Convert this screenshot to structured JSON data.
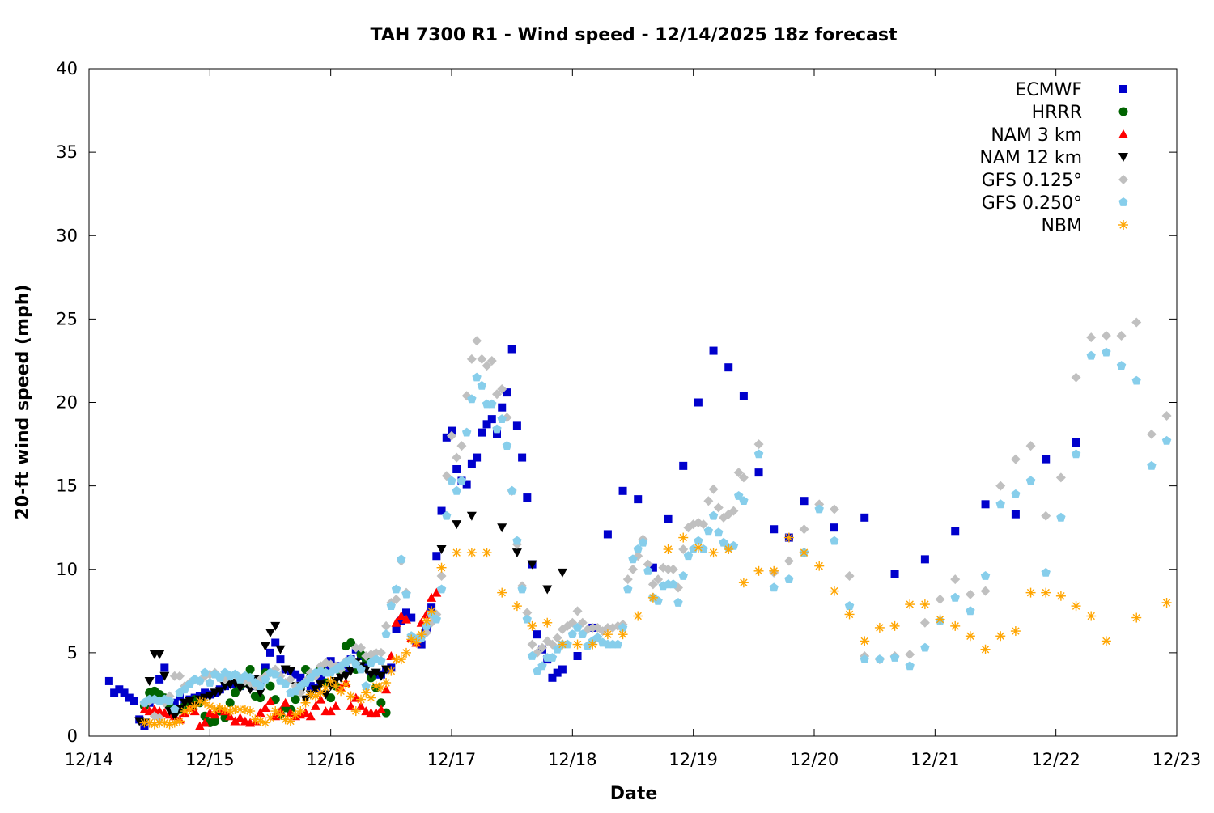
{
  "chart_data": {
    "type": "scatter",
    "title": "TAH 7300 R1 - Wind speed - 12/14/2025 18z forecast",
    "xlabel": "Date",
    "ylabel": "20-ft wind speed (mph)",
    "xlim": [
      "12/14 00",
      "12/23 00"
    ],
    "ylim": [
      0,
      40
    ],
    "x_ticks": [
      "12/14",
      "12/15",
      "12/16",
      "12/17",
      "12/18",
      "12/19",
      "12/20",
      "12/21",
      "12/22",
      "12/23"
    ],
    "y_ticks": [
      "0",
      "5",
      "10",
      "15",
      "20",
      "25",
      "30",
      "35",
      "40"
    ],
    "grid": false,
    "legend_position": "top-right",
    "series": [
      {
        "name": "ECMWF",
        "color": "#0000cc",
        "marker": "square",
        "segments": [
          {
            "start": "12/14 04",
            "step_hours": 1,
            "values": [
              3.3,
              2.6,
              2.8,
              2.6,
              2.3,
              2.1,
              1.0,
              0.6,
              2.0,
              2.2,
              3.4,
              4.1,
              1.9,
              2.0,
              2.4,
              2.0,
              2.2,
              2.3,
              2.4,
              2.6,
              2.5,
              2.6,
              2.8,
              3.0,
              3.2,
              3.1,
              3.0,
              3.2,
              3.1,
              3.0,
              3.3,
              4.1,
              5.0,
              5.6,
              4.6,
              4.0,
              3.9,
              3.7,
              3.5,
              3.2,
              3.0,
              2.9,
              3.4,
              4.0,
              4.5,
              4.2,
              4.1,
              4.0,
              4.6,
              5.2,
              4.8,
              4.4,
              3.6,
              3.7,
              3.7,
              4.0,
              4.1,
              6.4,
              6.9,
              7.4,
              7.1,
              5.6,
              5.5,
              6.4,
              7.7,
              10.8,
              13.5,
              17.9,
              18.3,
              16.0,
              15.3,
              15.1,
              16.3,
              16.7,
              18.2,
              18.7,
              19.0,
              18.1,
              19.7,
              20.6,
              23.2,
              18.6,
              16.7,
              14.3,
              10.3,
              6.1,
              5.2,
              4.6,
              3.5,
              3.8,
              4.0
            ]
          },
          {
            "start": "12/18 01",
            "step_hours": 3,
            "values": [
              4.8,
              6.5,
              12.1,
              14.7,
              14.2,
              10.1,
              13.0,
              16.2,
              20.0,
              23.1,
              22.1,
              20.4,
              15.8,
              12.4,
              11.9,
              14.1
            ]
          },
          {
            "start": "12/20 04",
            "step_hours": 6,
            "values": [
              12.5,
              13.1,
              9.7,
              10.6,
              12.3,
              13.9,
              13.3,
              16.6,
              17.6
            ]
          }
        ]
      },
      {
        "name": "HRRR",
        "color": "#006400",
        "marker": "circle",
        "segments": [
          {
            "start": "12/14 11",
            "step_hours": 1,
            "values": [
              1.8,
              2.6,
              2.7,
              2.5,
              2.3,
              1.8,
              1.4,
              1.6,
              1.8,
              2.0,
              2.2,
              2.0,
              1.2,
              0.8,
              0.9,
              1.5,
              1.1,
              2.0,
              2.6,
              3.0,
              3.2,
              4.0,
              2.4,
              2.3,
              3.8,
              3.0,
              2.2,
              1.3,
              1.7,
              1.6,
              2.2,
              3.0,
              4.0,
              3.6,
              3.7,
              4.0,
              3.2,
              2.3,
              3.0,
              3.8,
              5.4,
              5.6,
              4.0,
              4.9,
              4.6,
              3.5,
              2.9,
              2.0,
              1.4
            ]
          }
        ]
      },
      {
        "name": "NAM 3 km",
        "color": "#ff0000",
        "marker": "triangle-up",
        "segments": [
          {
            "start": "12/14 11",
            "step_hours": 1,
            "values": [
              1.6,
              1.5,
              1.6,
              1.5,
              1.4,
              1.3,
              1.2,
              1.0,
              1.4,
              1.7,
              1.5,
              0.6,
              0.8,
              1.4,
              1.3,
              1.6,
              1.5,
              1.2,
              0.9,
              1.1,
              0.9,
              0.8,
              0.9,
              1.4,
              1.7,
              2.1,
              1.2,
              1.5,
              2.0,
              1.4,
              1.2,
              1.3,
              1.4,
              1.2,
              1.8,
              2.2,
              1.5,
              1.5,
              1.8,
              2.9,
              3.2,
              1.8,
              2.3,
              1.8,
              1.5,
              1.4,
              1.4,
              1.6,
              2.8,
              4.8,
              6.8,
              7.2,
              7.0,
              5.9,
              5.6,
              6.8,
              7.3,
              8.3,
              8.6
            ]
          }
        ]
      },
      {
        "name": "NAM 12 km",
        "color": "#000000",
        "marker": "triangle-down",
        "segments": [
          {
            "start": "12/14 10",
            "step_hours": 1,
            "values": [
              0.9,
              0.8,
              3.3,
              4.9,
              4.9,
              3.6,
              1.5,
              1.2,
              1.6,
              2.0,
              2.1,
              1.8,
              2.2,
              2.3,
              2.4,
              2.6,
              2.7,
              3.0,
              3.1,
              3.2,
              2.9,
              3.2,
              2.8,
              3.4,
              2.6,
              5.4,
              6.2,
              6.6,
              5.2,
              4.0,
              3.9,
              3.0,
              2.6,
              2.2,
              2.5,
              2.8,
              3.1,
              2.5,
              3.0,
              3.3,
              3.5,
              3.6,
              3.9,
              4.4,
              4.2,
              4.0,
              3.7,
              3.8,
              3.6,
              4.0
            ]
          },
          {
            "start": "12/16 22",
            "step_hours": 3,
            "values": [
              11.2,
              12.7,
              13.2,
              null,
              12.5,
              11.0,
              10.3,
              8.8,
              9.8
            ]
          }
        ]
      },
      {
        "name": "GFS 0.125°",
        "color": "#c0c0c0",
        "marker": "diamond",
        "segments": [
          {
            "start": "12/14 11",
            "step_hours": 1,
            "values": [
              2.0,
              2.1,
              1.2,
              1.1,
              2.0,
              2.4,
              3.6,
              3.6,
              3.0,
              3.2,
              3.4,
              3.3,
              3.6,
              3.7,
              3.8,
              3.5,
              3.4,
              3.6,
              3.7,
              3.5,
              3.3,
              3.2,
              3.0,
              3.4,
              3.6,
              3.8,
              4.0,
              3.6,
              3.2,
              3.4,
              3.0,
              2.6,
              3.3,
              3.8,
              3.6,
              4.2,
              4.4,
              4.3,
              4.2,
              4.0,
              4.5,
              4.6,
              5.3,
              5.3,
              4.8,
              4.9,
              5.0,
              5.0,
              6.6,
              8.0,
              8.2,
              10.5,
              8.6,
              6.0,
              5.8,
              6.0,
              6.2,
              6.8,
              7.3,
              9.6,
              15.6,
              18.0,
              16.7,
              17.4,
              20.4,
              22.6,
              23.7,
              22.6,
              22.2,
              22.5,
              20.5,
              20.8,
              19.1,
              14.7,
              11.5,
              9.0,
              7.4,
              5.5,
              5.0,
              5.3,
              5.7,
              5.5,
              5.9,
              6.4,
              6.6,
              6.8,
              7.5,
              6.8,
              6.4,
              6.5,
              6.5,
              6.3,
              6.5,
              6.5,
              6.6,
              6.7,
              9.4,
              10.0,
              10.8,
              11.8,
              10.3,
              9.1,
              9.4,
              10.1,
              10.0,
              10.0,
              8.9,
              11.2,
              12.5,
              12.7,
              12.8,
              12.7,
              14.1,
              14.8,
              13.7,
              13.1,
              13.3,
              13.5,
              15.8,
              15.5
            ]
          },
          {
            "start": "12/19 13",
            "step_hours": 3,
            "values": [
              17.5,
              9.8,
              10.5,
              12.4,
              13.9,
              13.6,
              9.6,
              4.8,
              4.6,
              4.8,
              4.9,
              6.8,
              8.2,
              9.4,
              8.5,
              8.7,
              15.0,
              16.6,
              17.4,
              13.2,
              15.5,
              21.5,
              23.9,
              24.0,
              24.0,
              24.8,
              18.1,
              19.2
            ]
          }
        ]
      },
      {
        "name": "GFS 0.250°",
        "color": "#87ceeb",
        "marker": "pentagon",
        "segments": [
          {
            "start": "12/14 11",
            "step_hours": 1,
            "values": [
              2.0,
              2.2,
              2.2,
              2.1,
              2.2,
              2.1,
              1.6,
              2.6,
              2.8,
              3.1,
              3.4,
              3.3,
              3.8,
              3.2,
              3.7,
              3.5,
              3.8,
              3.6,
              3.7,
              3.4,
              3.6,
              3.5,
              3.2,
              3.0,
              3.4,
              3.8,
              3.7,
              3.3,
              3.1,
              2.6,
              2.7,
              3.0,
              3.2,
              3.5,
              3.8,
              3.9,
              3.8,
              3.8,
              4.0,
              4.2,
              4.4,
              4.6,
              4.3,
              4.0,
              3.0,
              4.4,
              4.6,
              4.5,
              6.1,
              7.8,
              8.8,
              10.6,
              8.5,
              6.0,
              5.8,
              5.9,
              6.6,
              7.3,
              7.0,
              8.8,
              13.2,
              15.3,
              14.7,
              15.3,
              18.2,
              20.2,
              21.5,
              21.0,
              19.9,
              19.9,
              18.4,
              19.0,
              17.4,
              14.7,
              11.7,
              8.8,
              7.0,
              4.8,
              3.9,
              4.2,
              4.7,
              4.7,
              5.2,
              5.5,
              5.5,
              6.1,
              6.5,
              6.1,
              5.4,
              5.7,
              5.9,
              5.6,
              5.5,
              5.5,
              5.5,
              6.5,
              8.8,
              10.6,
              11.2,
              11.6,
              9.9,
              8.3,
              8.1,
              9.0,
              9.1,
              9.1,
              8.0,
              9.6,
              10.8,
              11.2,
              11.7,
              11.2,
              12.3,
              13.2,
              12.2,
              11.6,
              11.3,
              11.4,
              14.4,
              14.1
            ]
          },
          {
            "start": "12/19 13",
            "step_hours": 3,
            "values": [
              16.9,
              8.9,
              9.4,
              11.0,
              13.6,
              11.7,
              7.8,
              4.6,
              4.6,
              4.7,
              4.2,
              5.3,
              6.9,
              8.3,
              7.5,
              9.6,
              13.9,
              14.5,
              15.3,
              9.8,
              13.1,
              16.9,
              22.8,
              23.0,
              22.2,
              21.3,
              16.2,
              17.7
            ]
          }
        ]
      },
      {
        "name": "NBM",
        "color": "#ffa500",
        "marker": "asterisk",
        "segments": [
          {
            "start": "12/14 11",
            "step_hours": 1,
            "values": [
              0.8,
              0.8,
              0.7,
              0.8,
              0.8,
              0.7,
              0.8,
              0.9,
              1.5,
              1.6,
              1.8,
              2.1,
              2.0,
              1.8,
              1.6,
              1.7,
              1.6,
              1.5,
              1.6,
              1.6,
              1.6,
              1.5,
              1.0,
              0.9,
              0.8,
              1.1,
              1.5,
              1.3,
              1.0,
              0.9,
              1.3,
              1.5,
              2.0,
              2.5,
              2.4,
              2.6,
              2.9,
              3.3,
              3.0,
              2.7,
              3.1,
              2.4,
              1.5,
              2.2,
              2.6,
              2.3,
              3.0,
              2.9,
              3.2,
              3.9,
              4.6,
              4.6,
              5.0,
              5.8,
              5.6,
              6.1,
              6.9,
              7.5
            ]
          },
          {
            "start": "12/16 22",
            "step_hours": 3,
            "values": [
              10.1,
              11.0,
              11.0,
              11.0,
              8.6,
              7.8,
              6.6,
              6.8,
              5.5,
              5.5,
              5.5,
              6.1,
              6.1,
              7.2,
              8.3,
              11.2,
              11.9,
              11.3,
              11.0,
              11.2,
              9.2,
              9.9,
              9.9,
              11.9,
              11.0,
              10.2,
              8.7,
              7.3,
              5.7,
              6.5,
              6.6,
              7.9,
              7.9,
              7.0,
              6.6,
              6.0,
              5.2,
              6.0,
              6.3,
              8.6,
              8.6,
              8.4,
              7.8,
              7.2,
              5.7,
              null,
              7.1,
              null,
              8.0
            ]
          }
        ]
      }
    ]
  }
}
